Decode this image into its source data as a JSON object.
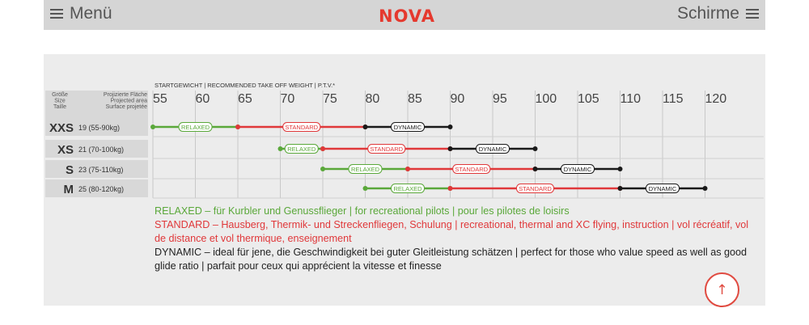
{
  "header": {
    "menu_label": "Menü",
    "logo_text": "NOVA",
    "right_label": "Schirme"
  },
  "chart_data": {
    "type": "range-bar",
    "weight_axis_label": "STARTGEWICHT | RECOMMENDED TAKE OFF WEIGHT | P.T.V.*",
    "ticks": [
      55,
      60,
      65,
      70,
      75,
      80,
      85,
      90,
      95,
      100,
      105,
      110,
      115,
      120
    ],
    "col_headers": {
      "size": [
        "Größe",
        "Size",
        "Taille"
      ],
      "area": [
        "Projizierte Fläche",
        "Projected area",
        "Surface projetée"
      ]
    },
    "rows": [
      {
        "size": "XXS",
        "area": "19 (55-90kg)",
        "relaxed": [
          55,
          65
        ],
        "standard": [
          65,
          80
        ],
        "dynamic": [
          80,
          90
        ]
      },
      {
        "size": "XS",
        "area": "21 (70-100kg)",
        "relaxed": [
          70,
          75
        ],
        "standard": [
          75,
          90
        ],
        "dynamic": [
          90,
          100
        ]
      },
      {
        "size": "S",
        "area": "23 (75-110kg)",
        "relaxed": [
          75,
          85
        ],
        "standard": [
          85,
          100
        ],
        "dynamic": [
          100,
          110
        ]
      },
      {
        "size": "M",
        "area": "25 (80-120kg)",
        "relaxed": [
          80,
          90
        ],
        "standard": [
          90,
          110
        ],
        "dynamic": [
          110,
          120
        ]
      }
    ],
    "segment_labels": {
      "relaxed": "RELAXED",
      "standard": "STANDARD",
      "dynamic": "DYNAMIC"
    },
    "colors": {
      "relaxed": "#5aa83a",
      "standard": "#e0383a",
      "dynamic": "#1a1a1a"
    }
  },
  "legend": {
    "relaxed": "RELAXED – für Kurbler und Genussflieger | for recreational pilots | pour les pilotes de loisirs",
    "standard": "STANDARD – Hausberg, Thermik- und Streckenfliegen, Schulung | recreational, thermal and XC flying, instruction | vol récréatif, vol de distance et vol thermique, enseignement",
    "dynamic": "DYNAMIC – ideal für jene, die Geschwindigkeit bei guter Gleitleistung schätzen | perfect for those who value speed as well as good glide ratio | parfait pour ceux qui apprécient la vitesse et finesse"
  },
  "scroll_top_icon": "arrow-up-icon"
}
